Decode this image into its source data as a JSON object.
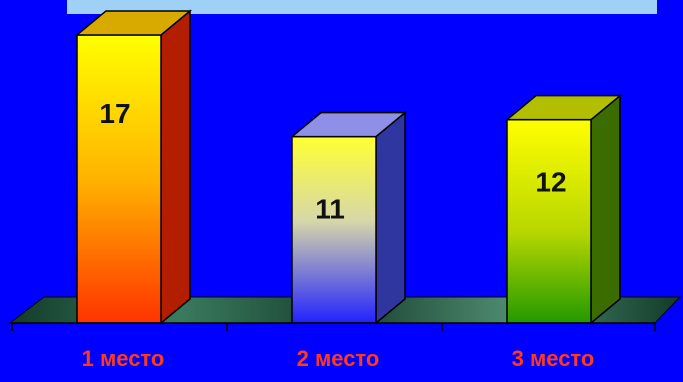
{
  "chart_data": {
    "type": "bar",
    "categories": [
      "1 место",
      "2 место",
      "3 место"
    ],
    "values": [
      17,
      11,
      12
    ],
    "title": "",
    "xlabel": "",
    "ylabel": "",
    "ylim": [
      0,
      18
    ],
    "grid": false,
    "legend": "none"
  },
  "colors": {
    "background": "#0000ff",
    "top_band": "#9fd0f5",
    "category_label": "#ff3a1a",
    "floor_dark": "#123b2a",
    "floor_light": "#3a7b5e",
    "bar_1_top": "#ffff00",
    "bar_1_bottom": "#ff3300",
    "bar_2_top": "#ffff33",
    "bar_2_bottom": "#2222ff",
    "bar_3_top": "#ffff00",
    "bar_3_bottom": "#229900"
  }
}
